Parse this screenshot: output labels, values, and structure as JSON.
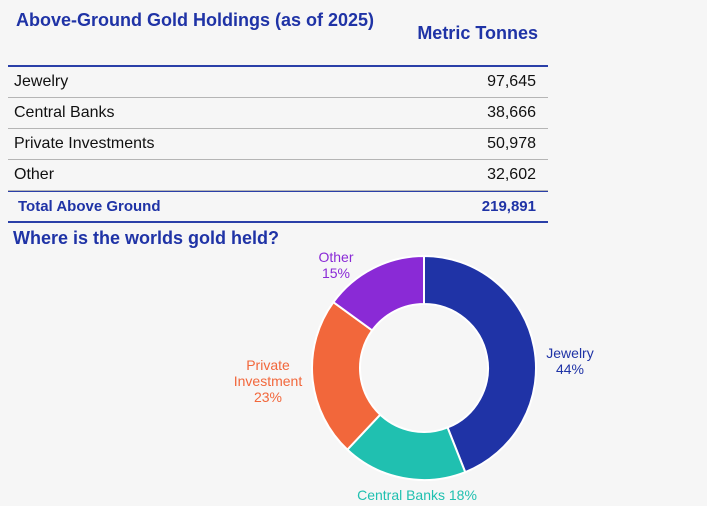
{
  "table": {
    "title": "Above-Ground Gold Holdings (as of 2025)",
    "unit_header": "Metric Tonnes",
    "rows": [
      {
        "label": "Jewelry",
        "value": "97,645"
      },
      {
        "label": "Central Banks",
        "value": "38,666"
      },
      {
        "label": "Private Investments",
        "value": "50,978"
      },
      {
        "label": "Other",
        "value": "32,602"
      }
    ],
    "total": {
      "label": "Total Above Ground",
      "value": "219,891"
    }
  },
  "chart_data": {
    "type": "pie",
    "donut": true,
    "title": "Where is the worlds gold held?",
    "slices": [
      {
        "name": "Jewelry",
        "value": 44,
        "label_lines": [
          "Jewelry",
          "44%"
        ],
        "color": "#1f33a6"
      },
      {
        "name": "Central Banks",
        "value": 18,
        "label_lines": [
          "Central Banks 18%"
        ],
        "color": "#20c0b0"
      },
      {
        "name": "Private Investment",
        "value": 23,
        "label_lines": [
          "Private",
          "Investment",
          "23%"
        ],
        "color": "#f2673b"
      },
      {
        "name": "Other",
        "value": 15,
        "label_lines": [
          "Other",
          "15%"
        ],
        "color": "#8a2ad6"
      }
    ]
  }
}
